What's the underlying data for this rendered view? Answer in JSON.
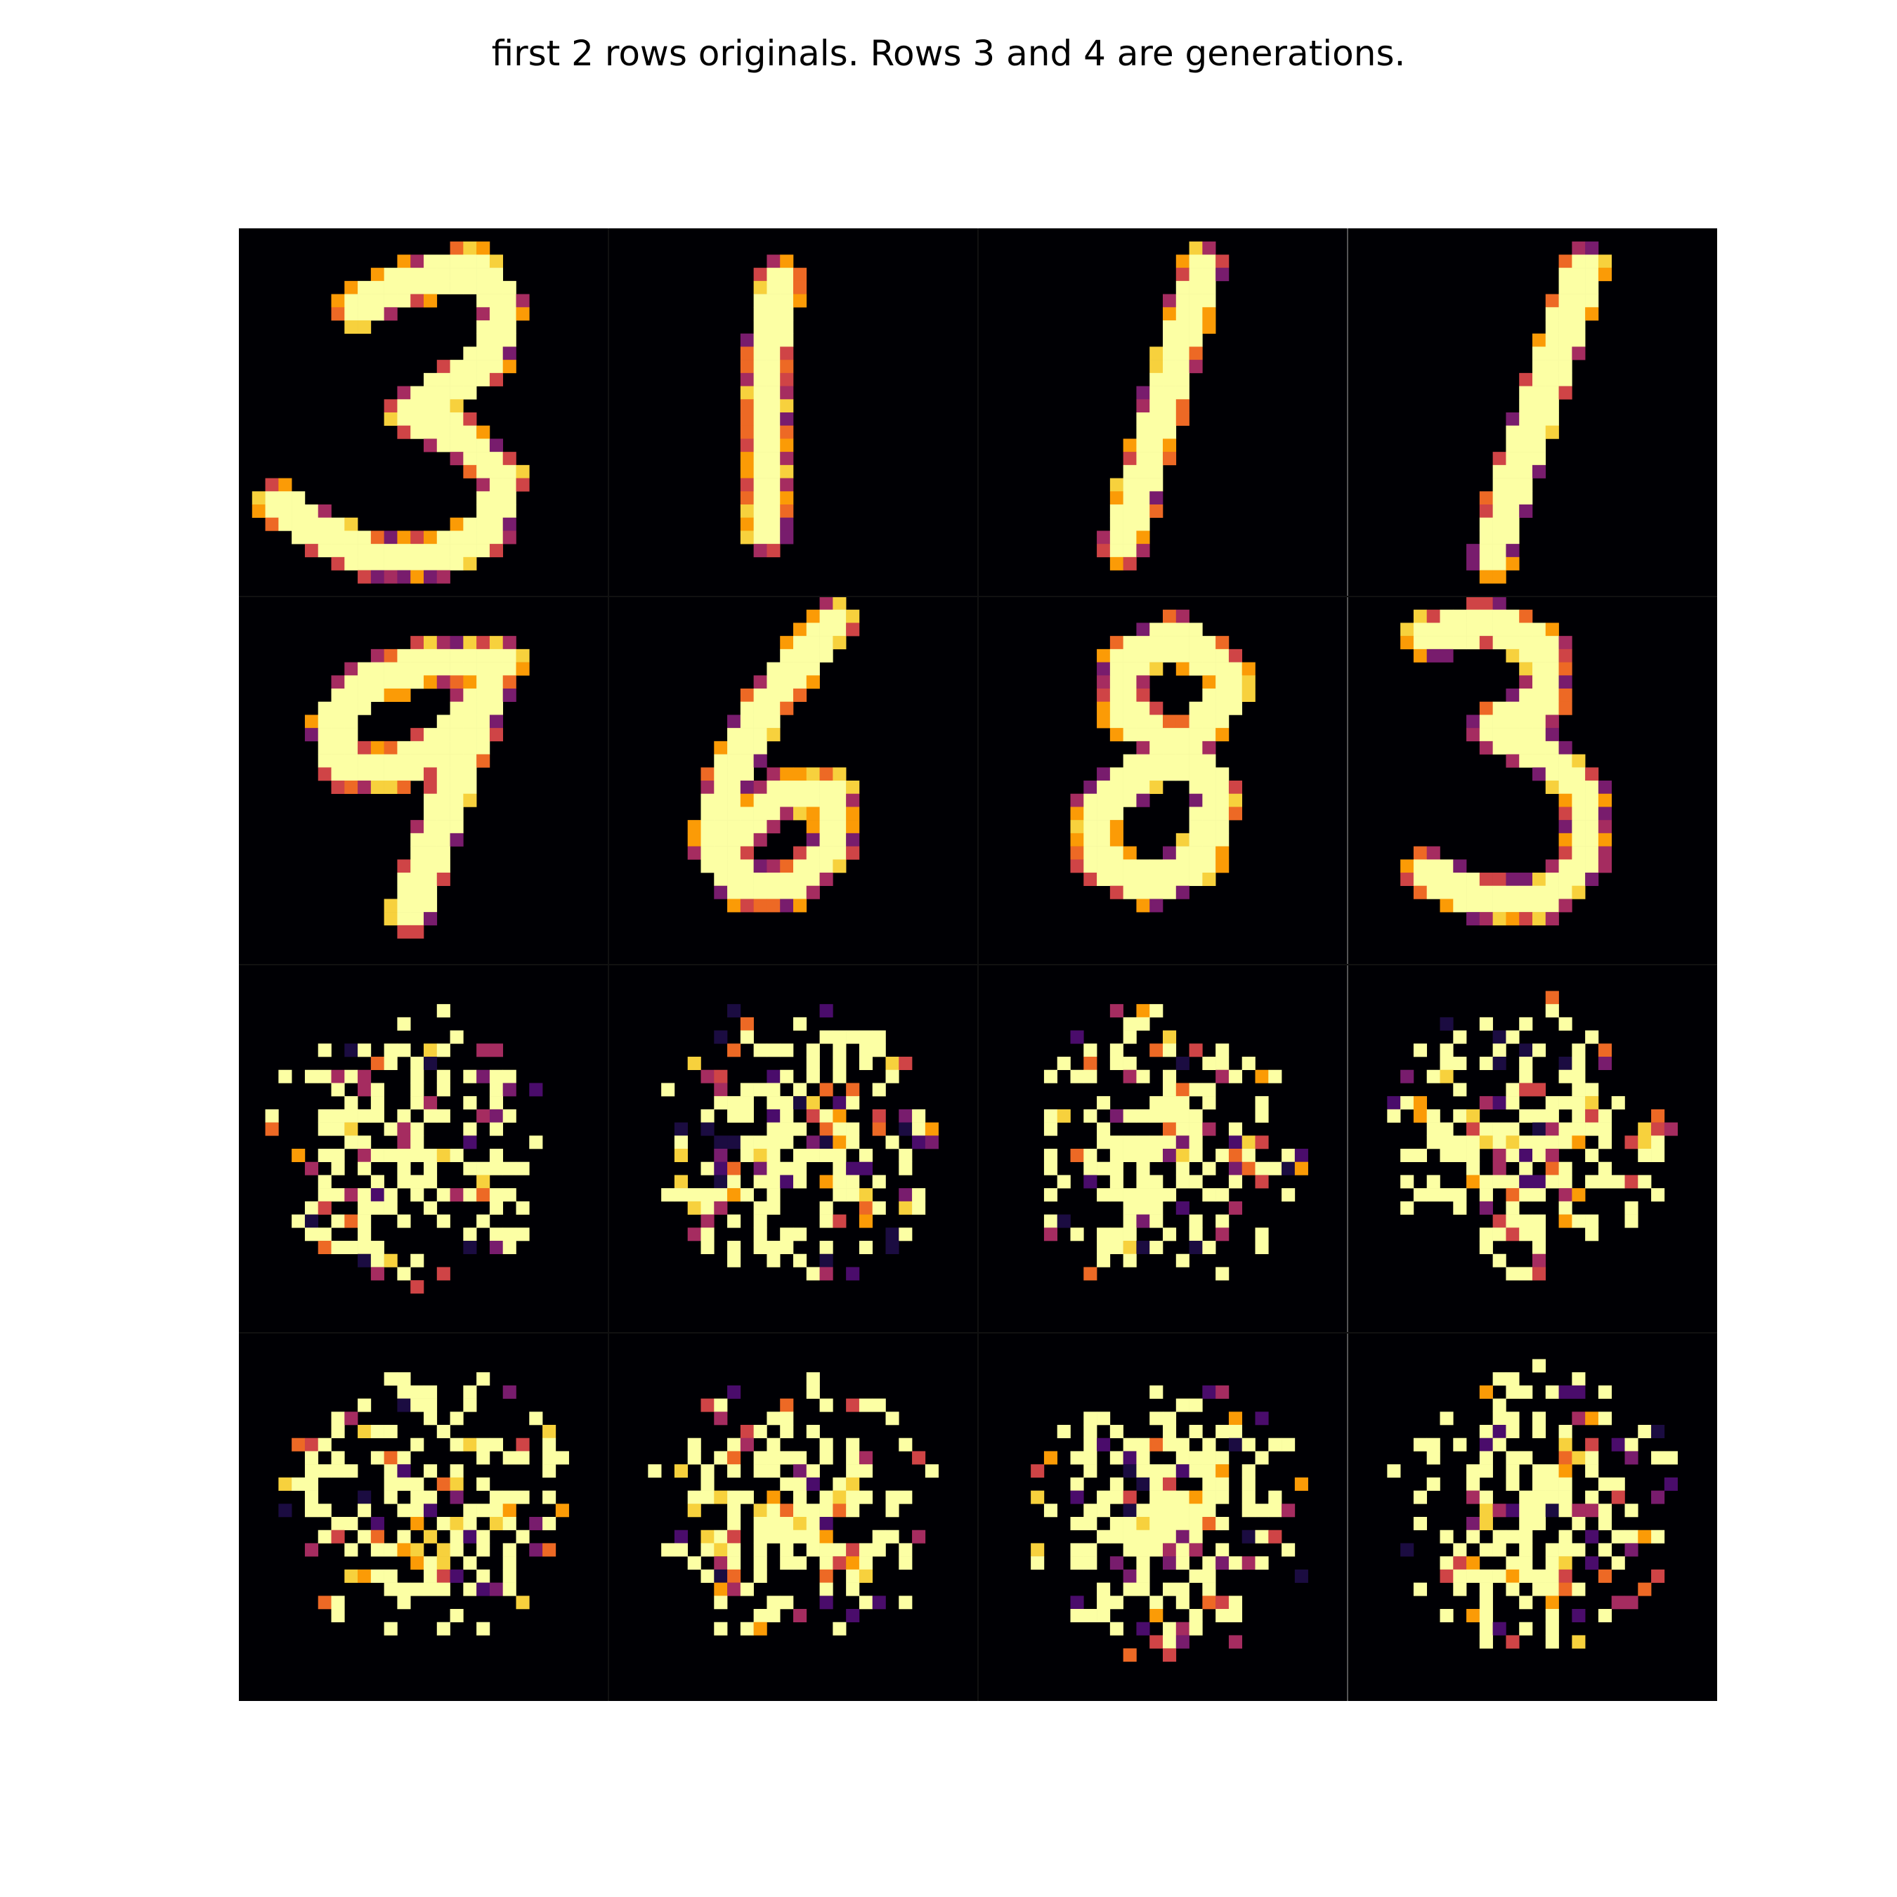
{
  "figure": {
    "title": "first 2 rows originals. Rows 3 and 4 are generations.",
    "rows": 4,
    "cols": 4,
    "pixels_per_tile": 28,
    "colormap": [
      "#000004",
      "#1b0c41",
      "#4a0c6b",
      "#781c6d",
      "#a52c60",
      "#cf4446",
      "#ed6925",
      "#fb9b06",
      "#f7d13d",
      "#fcffa4"
    ],
    "tiles": [
      {
        "row": 1,
        "col": 1,
        "kind": "original",
        "digit": "3"
      },
      {
        "row": 1,
        "col": 2,
        "kind": "original",
        "digit": "1"
      },
      {
        "row": 1,
        "col": 3,
        "kind": "original",
        "digit": "1"
      },
      {
        "row": 1,
        "col": 4,
        "kind": "original",
        "digit": "1"
      },
      {
        "row": 2,
        "col": 1,
        "kind": "original",
        "digit": "9"
      },
      {
        "row": 2,
        "col": 2,
        "kind": "original",
        "digit": "6"
      },
      {
        "row": 2,
        "col": 3,
        "kind": "original",
        "digit": "8"
      },
      {
        "row": 2,
        "col": 4,
        "kind": "original",
        "digit": "3"
      },
      {
        "row": 3,
        "col": 1,
        "kind": "generation"
      },
      {
        "row": 3,
        "col": 2,
        "kind": "generation"
      },
      {
        "row": 3,
        "col": 3,
        "kind": "generation"
      },
      {
        "row": 3,
        "col": 4,
        "kind": "generation"
      },
      {
        "row": 4,
        "col": 1,
        "kind": "generation"
      },
      {
        "row": 4,
        "col": 2,
        "kind": "generation"
      },
      {
        "row": 4,
        "col": 3,
        "kind": "generation"
      },
      {
        "row": 4,
        "col": 4,
        "kind": "generation"
      }
    ]
  }
}
